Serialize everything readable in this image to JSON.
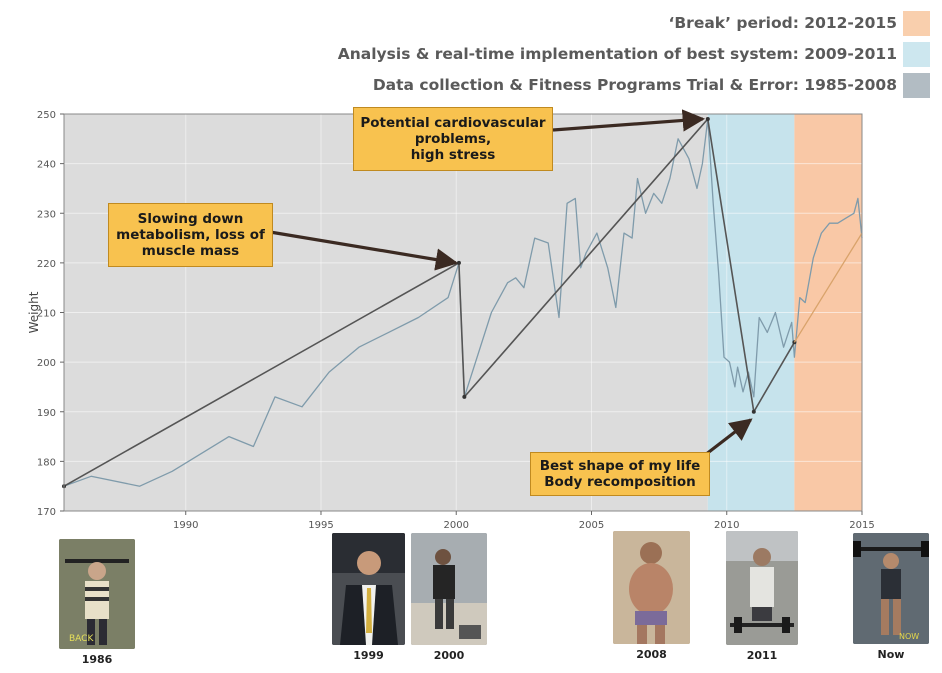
{
  "legend": [
    {
      "label": "‘Break’ period: 2012-2015",
      "color": "#f9cfad"
    },
    {
      "label": "Analysis & real-time implementation of best system: 2009-2011",
      "color": "#cde7ef"
    },
    {
      "label": "Data collection & Fitness Programs Trial & Error: 1985-2008",
      "color": "#b2bcc3"
    }
  ],
  "chart_data": {
    "type": "line",
    "ylabel": "Weight",
    "xlabel": "",
    "xlim": [
      1985.5,
      2015
    ],
    "ylim": [
      170,
      250
    ],
    "x_ticks": [
      1990,
      1995,
      2000,
      2005,
      2010,
      2015
    ],
    "y_ticks": [
      170,
      180,
      190,
      200,
      210,
      220,
      230,
      240,
      250
    ],
    "grid": true,
    "periods": [
      {
        "name": "Data collection & Fitness Programs Trial & Error",
        "start": 1985.5,
        "end": 2009.3,
        "color": "#dcdcdc"
      },
      {
        "name": "Analysis & real-time implementation of best system",
        "start": 2009.3,
        "end": 2012.5,
        "color": "#c6e3ec"
      },
      {
        "name": "‘Break’ period",
        "start": 2012.5,
        "end": 2015,
        "color": "#f9c8a6"
      }
    ],
    "series": [
      {
        "color": "#7f9bab",
        "x": [
          1985.5,
          1986.5,
          1988.3,
          1989.5,
          1990.7,
          1991.6,
          1992.5,
          1993.3,
          1994.3,
          1995.3,
          1996.4,
          1997.5,
          1998.6,
          1999.7,
          2000.1,
          2000.3,
          2001.3,
          2001.6,
          2001.9,
          2002.2,
          2002.5,
          2002.9,
          2003.4,
          2003.8,
          2004.1,
          2004.4,
          2004.6,
          2004.8,
          2005.2,
          2005.6,
          2005.9,
          2006.2,
          2006.5,
          2006.7,
          2007.0,
          2007.3,
          2007.6,
          2007.9,
          2008.2,
          2008.6,
          2008.9,
          2009.1,
          2009.3,
          2009.5,
          2009.7,
          2009.9,
          2010.1,
          2010.3,
          2010.4,
          2010.6,
          2010.8,
          2011.0,
          2011.2,
          2011.5,
          2011.8,
          2012.1,
          2012.4,
          2012.5,
          2012.7,
          2012.9,
          2013.2,
          2013.5,
          2013.8,
          2014.1,
          2014.4,
          2014.7,
          2014.85,
          2015
        ],
        "y": [
          175,
          177,
          175,
          178,
          182,
          185,
          183,
          193,
          191,
          198,
          203,
          206,
          209,
          213,
          220,
          193,
          210,
          213,
          216,
          217,
          215,
          225,
          224,
          209,
          232,
          233,
          219,
          222,
          226,
          219,
          211,
          226,
          225,
          237,
          230,
          234,
          232,
          237,
          245,
          241,
          235,
          240,
          249,
          232,
          218,
          201,
          200,
          195,
          199,
          194,
          198,
          193,
          209,
          206,
          210,
          203,
          208,
          201,
          213,
          212,
          221,
          226,
          228,
          228,
          229,
          230,
          233,
          225
        ]
      },
      {
        "color": "#555555",
        "x": [
          1985.5,
          2000.1,
          2000.3,
          2009.3,
          2011.0,
          2012.5
        ],
        "y": [
          175,
          220,
          193,
          249,
          190,
          204
        ]
      },
      {
        "color": "#d9a36b",
        "x": [
          2012.5,
          2015
        ],
        "y": [
          204,
          226
        ]
      }
    ],
    "annotations": [
      {
        "text": "Slowing down\nmetabolism, loss of\nmuscle mass",
        "x": 2000.1,
        "y": 220
      },
      {
        "text": "Potential cardiovascular\nproblems,\nhigh stress",
        "x": 2009.3,
        "y": 249
      },
      {
        "text": "Best shape of my life\nBody recomposition",
        "x": 2011.0,
        "y": 190
      }
    ]
  },
  "photos": [
    {
      "caption": "1986",
      "tone": "#6b7058"
    },
    {
      "caption": "1999",
      "tone": "#3a3f4a"
    },
    {
      "caption": "2000",
      "tone": "#8a8f92"
    },
    {
      "caption": "2008",
      "tone": "#b8a489"
    },
    {
      "caption": "2011",
      "tone": "#8c8d88"
    },
    {
      "caption": "Now",
      "tone": "#55606a"
    }
  ]
}
